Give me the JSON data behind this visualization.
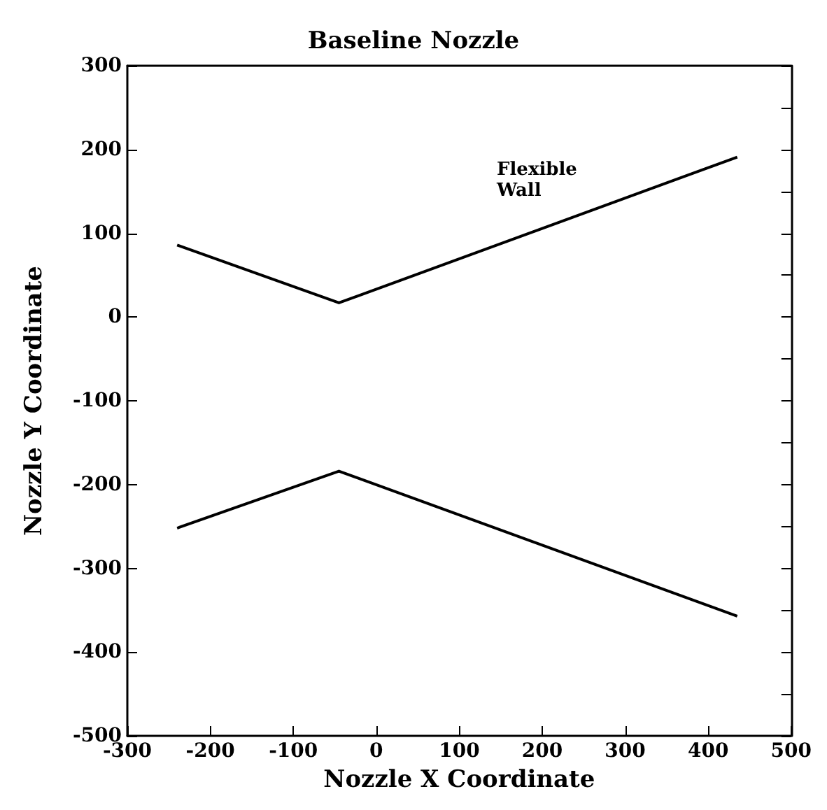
{
  "chart_data": {
    "type": "line",
    "title": "Baseline Nozzle",
    "xlabel": "Nozzle X Coordinate",
    "ylabel": "Nozzle Y Coordinate",
    "xlim": [
      -300,
      500
    ],
    "xticks": [
      -300,
      -200,
      -100,
      0,
      100,
      200,
      300,
      400,
      500
    ],
    "ylim": [
      -500,
      300
    ],
    "yticks": [
      -500,
      -400,
      -300,
      -200,
      -100,
      0,
      100,
      200,
      300
    ],
    "series": [
      {
        "color": "#000000",
        "x": [
          -240,
          -45,
          435
        ],
        "values": [
          86,
          17,
          191
        ]
      },
      {
        "color": "#000000",
        "x": [
          -240,
          -45,
          435
        ],
        "values": [
          -252,
          -184,
          -357
        ]
      }
    ],
    "annotations": [
      "Flexible\nWall"
    ],
    "grid": false,
    "marker": "none",
    "line_style": "solid"
  }
}
